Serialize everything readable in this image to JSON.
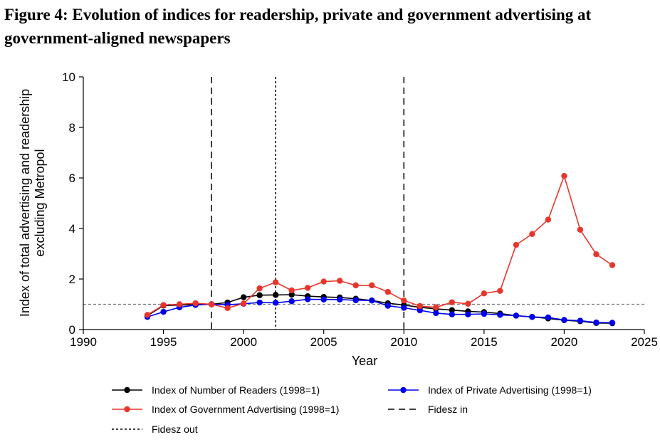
{
  "figure": {
    "label": "Figure 4",
    "title": "Evolution of indices for readership, private and government advertising at government-aligned newspapers"
  },
  "chart_data": {
    "type": "line",
    "xlabel": "Year",
    "ylabel_line1": "Index of total advertising and readership",
    "ylabel_line2": "excluding Metropol",
    "xlim": [
      1990,
      2025
    ],
    "ylim": [
      0,
      10
    ],
    "xticks": [
      1990,
      1995,
      2000,
      2005,
      2010,
      2015,
      2020,
      2025
    ],
    "yticks": [
      0,
      2,
      4,
      6,
      8,
      10
    ],
    "x": [
      1994,
      1995,
      1996,
      1997,
      1998,
      1999,
      2000,
      2001,
      2002,
      2003,
      2004,
      2005,
      2006,
      2007,
      2008,
      2009,
      2010,
      2011,
      2012,
      2013,
      2014,
      2015,
      2016,
      2017,
      2018,
      2019,
      2020,
      2021,
      2022,
      2023
    ],
    "series": [
      {
        "name": "Index of Number of Readers (1998=1)",
        "color": "#000000",
        "values": [
          0.55,
          0.95,
          0.97,
          0.99,
          1.0,
          1.07,
          1.28,
          1.36,
          1.37,
          1.38,
          1.32,
          1.29,
          1.27,
          1.22,
          1.15,
          1.04,
          0.97,
          0.88,
          0.82,
          0.77,
          0.72,
          0.69,
          0.63,
          0.55,
          0.5,
          0.44,
          0.37,
          0.33,
          0.26,
          0.25
        ]
      },
      {
        "name": "Index of Private Advertising (1998=1)",
        "color": "#0000ee",
        "values": [
          0.5,
          0.7,
          0.88,
          0.97,
          1.0,
          0.98,
          1.02,
          1.07,
          1.06,
          1.12,
          1.2,
          1.19,
          1.19,
          1.16,
          1.15,
          0.94,
          0.86,
          0.76,
          0.65,
          0.6,
          0.6,
          0.62,
          0.58,
          0.55,
          0.5,
          0.48,
          0.38,
          0.35,
          0.28,
          0.27
        ]
      },
      {
        "name": "Index of Government Advertising (1998=1)",
        "color": "#e8352b",
        "values": [
          0.58,
          0.97,
          1.0,
          1.04,
          1.0,
          0.85,
          1.03,
          1.63,
          1.87,
          1.55,
          1.65,
          1.9,
          1.93,
          1.75,
          1.75,
          1.49,
          1.15,
          0.93,
          0.88,
          1.08,
          1.02,
          1.43,
          1.53,
          3.35,
          3.78,
          4.35,
          6.08,
          3.95,
          2.98,
          2.55
        ]
      }
    ],
    "vlines": [
      {
        "x": 1998,
        "style": "dashed"
      },
      {
        "x": 2002,
        "style": "dotted"
      },
      {
        "x": 2010,
        "style": "dashed"
      }
    ],
    "hline": {
      "y": 1,
      "style": "dashed",
      "color": "#777777"
    },
    "legend_extra": [
      {
        "name": "Fidesz in",
        "style": "dashed"
      },
      {
        "name": "Fidesz out",
        "style": "dotted"
      }
    ],
    "legend_position": "bottom",
    "grid": false
  }
}
